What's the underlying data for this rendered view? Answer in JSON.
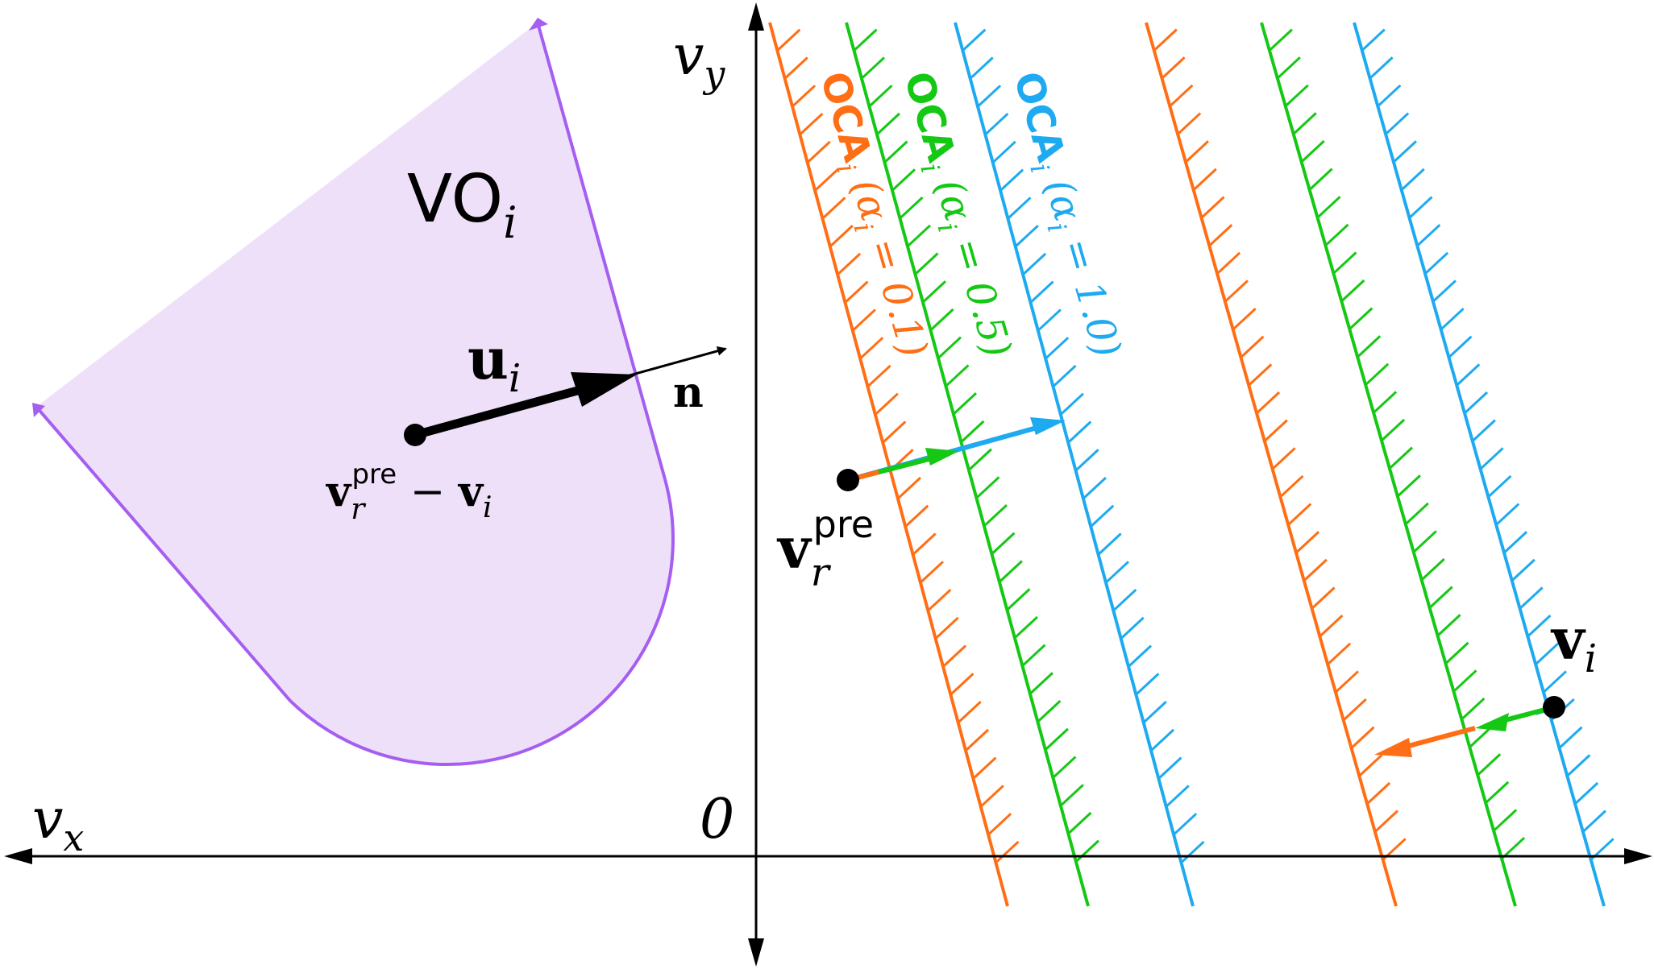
{
  "colors": {
    "axis": "#000000",
    "vo_fill": "#efe0fa",
    "vo_stroke": "#a55ef0",
    "orange": "#ff6e14",
    "green": "#14c814",
    "blue": "#1eaaf0",
    "point": "#000000"
  },
  "axes": {
    "vx_label": "v",
    "vx_sub": "x",
    "vy_label": "v",
    "vy_sub": "y",
    "origin_label": "0"
  },
  "vo": {
    "label": "VO",
    "label_sub": "i"
  },
  "vectors": {
    "u_label": "u",
    "u_sub": "i",
    "n_label": "n"
  },
  "points": {
    "rel_vel_base": "v",
    "rel_vel_sub": "r",
    "rel_vel_sup": "pre",
    "rel_vel_minus": " − ",
    "rel_vel_v": "v",
    "rel_vel_vsub": "i",
    "vr_base": "v",
    "vr_sub": "r",
    "vr_sup": "pre",
    "vi_base": "v",
    "vi_sub": "i"
  },
  "oca_labels": [
    {
      "name": "OCA",
      "sub": "i",
      "alpha": "α",
      "alpha_sub": "i",
      "eq": " = 0.1",
      "color_key": "orange"
    },
    {
      "name": "OCA",
      "sub": "i",
      "alpha": "α",
      "alpha_sub": "i",
      "eq": " = 0.5",
      "color_key": "green"
    },
    {
      "name": "OCA",
      "sub": "i",
      "alpha": "α",
      "alpha_sub": "i",
      "eq": " = 1.0",
      "color_key": "blue"
    }
  ]
}
